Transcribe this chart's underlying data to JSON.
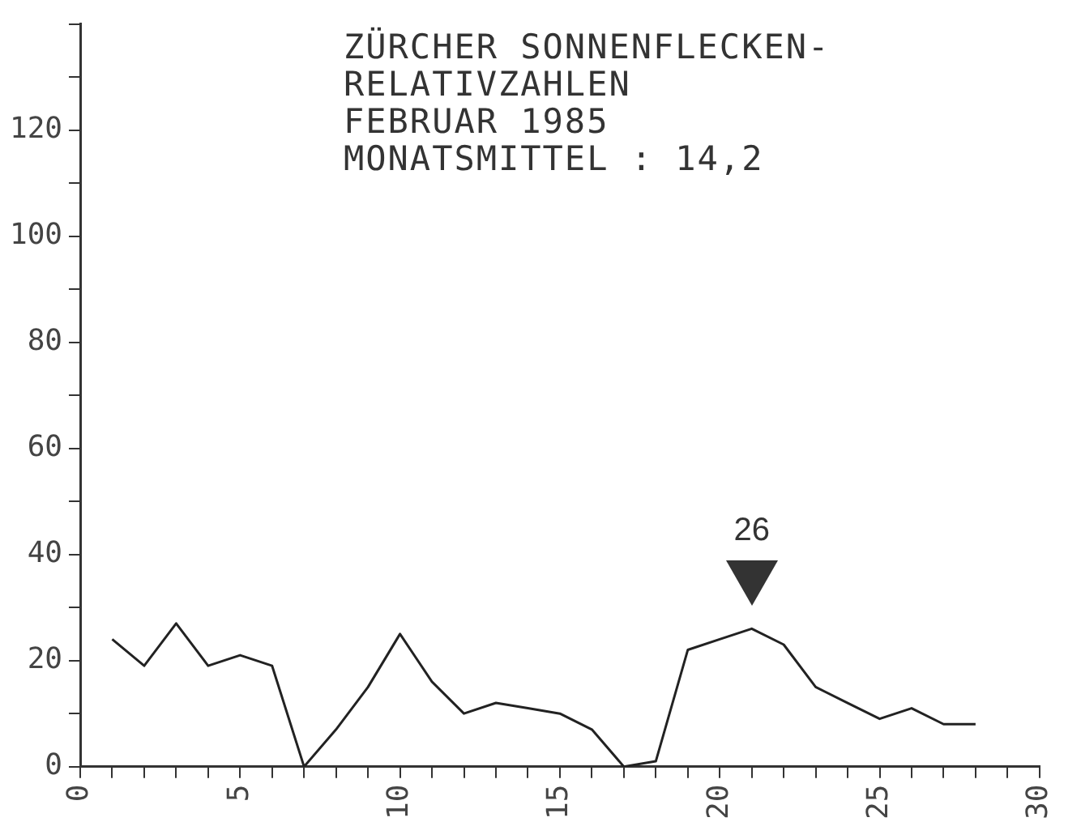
{
  "chart_data": {
    "type": "line",
    "title": "ZÜRCHER SONNENFLECKEN-\nRELATIVZAHLEN",
    "subtitle": "FEBRUAR 1985",
    "annotations": [
      "MONATSMITTEL : 14,2",
      {
        "text": "26",
        "x": 21,
        "y": 26
      }
    ],
    "x": [
      1,
      2,
      3,
      4,
      5,
      6,
      7,
      8,
      9,
      10,
      11,
      12,
      13,
      14,
      15,
      16,
      17,
      18,
      19,
      20,
      21,
      22,
      23,
      24,
      25,
      26,
      27,
      28
    ],
    "series": [
      {
        "color": "#222222",
        "values": [
          24,
          19,
          27,
          19,
          21,
          19,
          0,
          7,
          15,
          25,
          16,
          10,
          12,
          11,
          10,
          7,
          0,
          1,
          22,
          24,
          26,
          23,
          15,
          12,
          9,
          11,
          8,
          8
        ]
      }
    ],
    "xlim": [
      0,
      30
    ],
    "xticks": [
      0,
      {
        "value": 1,
        "label": null
      },
      {
        "value": 2,
        "label": null
      },
      {
        "value": 3,
        "label": null
      },
      {
        "value": 4,
        "label": null
      },
      5,
      {
        "value": 6,
        "label": null
      },
      {
        "value": 7,
        "label": null
      },
      {
        "value": 8,
        "label": null
      },
      {
        "value": 9,
        "label": null
      },
      10,
      {
        "value": 11,
        "label": null
      },
      {
        "value": 12,
        "label": null
      },
      {
        "value": 13,
        "label": null
      },
      {
        "value": 14,
        "label": null
      },
      15,
      {
        "value": 16,
        "label": null
      },
      {
        "value": 17,
        "label": null
      },
      {
        "value": 18,
        "label": null
      },
      {
        "value": 19,
        "label": null
      },
      20,
      {
        "value": 21,
        "label": null
      },
      {
        "value": 22,
        "label": null
      },
      {
        "value": 23,
        "label": null
      },
      {
        "value": 24,
        "label": null
      },
      25,
      {
        "value": 26,
        "label": null
      },
      {
        "value": 27,
        "label": null
      },
      {
        "value": 28,
        "label": null
      },
      {
        "value": 29,
        "label": null
      },
      30
    ],
    "ylim": [
      0,
      140
    ],
    "yticks": [
      0,
      {
        "value": 10,
        "label": null
      },
      20,
      {
        "value": 30,
        "label": null
      },
      40,
      {
        "value": 50,
        "label": null
      },
      60,
      {
        "value": 70,
        "label": null
      },
      80,
      {
        "value": 90,
        "label": null
      },
      100,
      {
        "value": 110,
        "label": null
      },
      120,
      {
        "value": 130,
        "label": null
      },
      {
        "value": 140,
        "label": null
      }
    ],
    "grid": false,
    "legend": false,
    "marker": "none",
    "line_style": "solid"
  }
}
